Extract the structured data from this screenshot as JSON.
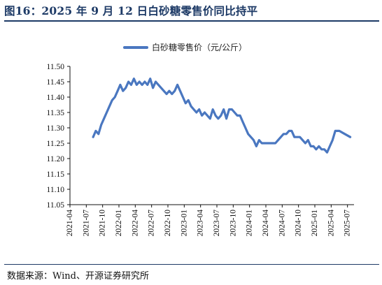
{
  "title": "图16：2025 年 9 月 12 日白砂糖零售价同比持平",
  "source": "数据来源：Wind、开源证券研究所",
  "colors": {
    "line": "#4a77c0",
    "title": "#1d3a66"
  },
  "chart_data": {
    "type": "line",
    "title": "",
    "xlabel": "",
    "ylabel": "",
    "ylim": [
      11.05,
      11.5
    ],
    "yticks": [
      "11.50",
      "11.45",
      "11.40",
      "11.35",
      "11.30",
      "11.25",
      "11.20",
      "11.15",
      "11.10",
      "11.05"
    ],
    "x_tick_labels": [
      "2021-04",
      "2021-07",
      "2021-10",
      "2022-01",
      "2022-04",
      "2022-07",
      "2022-10",
      "2023-01",
      "2023-04",
      "2023-07",
      "2023-10",
      "2024-01",
      "2024-04",
      "2024-07",
      "2024-10",
      "2025-01",
      "2025-04",
      "2025-07"
    ],
    "legend_position": "top-center",
    "grid": false,
    "series": [
      {
        "name": "白砂糖零售价（元/公斤）",
        "points": [
          [
            "2021-08",
            11.27
          ],
          [
            "2021-08",
            11.29
          ],
          [
            "2021-09",
            11.28
          ],
          [
            "2021-09",
            11.31
          ],
          [
            "2021-10",
            11.33
          ],
          [
            "2021-10",
            11.35
          ],
          [
            "2021-11",
            11.37
          ],
          [
            "2021-11",
            11.39
          ],
          [
            "2021-12",
            11.4
          ],
          [
            "2021-12",
            11.42
          ],
          [
            "2022-01",
            11.44
          ],
          [
            "2022-01",
            11.42
          ],
          [
            "2022-02",
            11.43
          ],
          [
            "2022-02",
            11.45
          ],
          [
            "2022-03",
            11.44
          ],
          [
            "2022-03",
            11.46
          ],
          [
            "2022-04",
            11.44
          ],
          [
            "2022-04",
            11.45
          ],
          [
            "2022-05",
            11.44
          ],
          [
            "2022-05",
            11.45
          ],
          [
            "2022-06",
            11.44
          ],
          [
            "2022-06",
            11.46
          ],
          [
            "2022-07",
            11.43
          ],
          [
            "2022-07",
            11.45
          ],
          [
            "2022-08",
            11.44
          ],
          [
            "2022-08",
            11.43
          ],
          [
            "2022-09",
            11.42
          ],
          [
            "2022-09",
            11.41
          ],
          [
            "2022-10",
            11.42
          ],
          [
            "2022-10",
            11.41
          ],
          [
            "2022-11",
            11.42
          ],
          [
            "2022-11",
            11.44
          ],
          [
            "2022-12",
            11.42
          ],
          [
            "2022-12",
            11.4
          ],
          [
            "2023-01",
            11.38
          ],
          [
            "2023-01",
            11.39
          ],
          [
            "2023-02",
            11.37
          ],
          [
            "2023-02",
            11.36
          ],
          [
            "2023-03",
            11.35
          ],
          [
            "2023-03",
            11.36
          ],
          [
            "2023-04",
            11.34
          ],
          [
            "2023-04",
            11.35
          ],
          [
            "2023-05",
            11.34
          ],
          [
            "2023-05",
            11.33
          ],
          [
            "2023-06",
            11.36
          ],
          [
            "2023-06",
            11.34
          ],
          [
            "2023-07",
            11.33
          ],
          [
            "2023-07",
            11.34
          ],
          [
            "2023-08",
            11.36
          ],
          [
            "2023-08",
            11.33
          ],
          [
            "2023-09",
            11.36
          ],
          [
            "2023-09",
            11.36
          ],
          [
            "2023-10",
            11.35
          ],
          [
            "2023-10",
            11.34
          ],
          [
            "2023-11",
            11.34
          ],
          [
            "2023-11",
            11.32
          ],
          [
            "2023-12",
            11.3
          ],
          [
            "2023-12",
            11.28
          ],
          [
            "2024-01",
            11.27
          ],
          [
            "2024-01",
            11.26
          ],
          [
            "2024-02",
            11.24
          ],
          [
            "2024-02",
            11.26
          ],
          [
            "2024-03",
            11.25
          ],
          [
            "2024-03",
            11.25
          ],
          [
            "2024-04",
            11.25
          ],
          [
            "2024-05",
            11.25
          ],
          [
            "2024-05",
            11.25
          ],
          [
            "2024-06",
            11.26
          ],
          [
            "2024-06",
            11.27
          ],
          [
            "2024-07",
            11.28
          ],
          [
            "2024-07",
            11.28
          ],
          [
            "2024-08",
            11.29
          ],
          [
            "2024-08",
            11.29
          ],
          [
            "2024-09",
            11.27
          ],
          [
            "2024-09",
            11.27
          ],
          [
            "2024-10",
            11.27
          ],
          [
            "2024-10",
            11.26
          ],
          [
            "2024-11",
            11.25
          ],
          [
            "2024-11",
            11.26
          ],
          [
            "2024-12",
            11.24
          ],
          [
            "2024-12",
            11.24
          ],
          [
            "2025-01",
            11.23
          ],
          [
            "2025-01",
            11.24
          ],
          [
            "2025-02",
            11.23
          ],
          [
            "2025-02",
            11.23
          ],
          [
            "2025-03",
            11.22
          ],
          [
            "2025-03",
            11.24
          ],
          [
            "2025-04",
            11.26
          ],
          [
            "2025-04",
            11.29
          ],
          [
            "2025-05",
            11.29
          ],
          [
            "2025-06",
            11.28
          ],
          [
            "2025-07",
            11.27
          ]
        ]
      }
    ]
  }
}
